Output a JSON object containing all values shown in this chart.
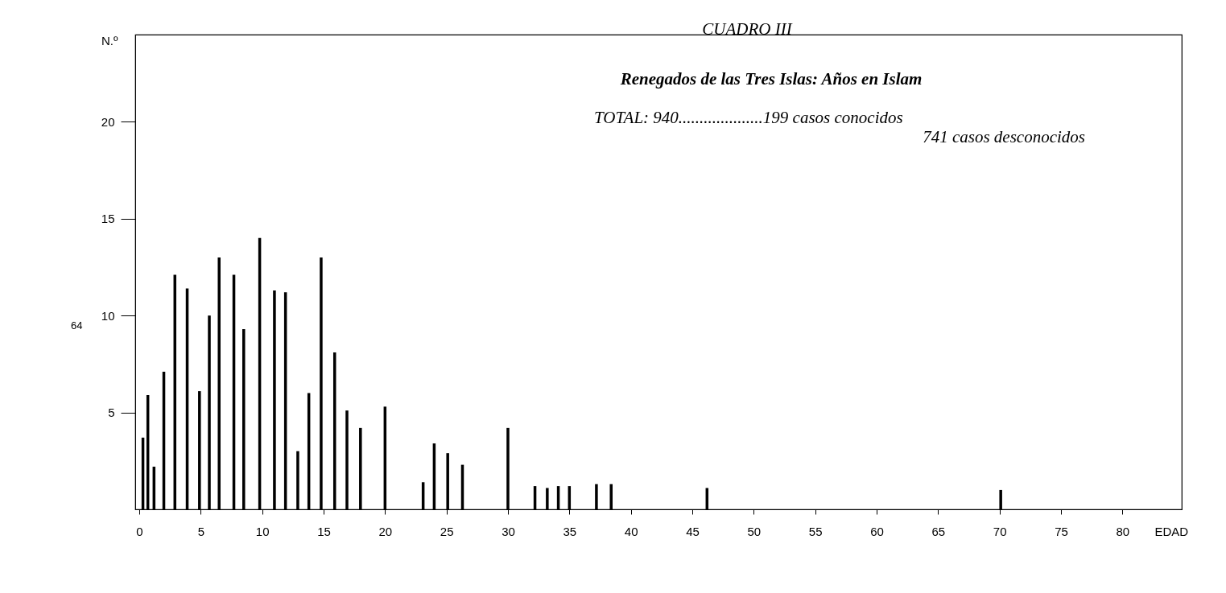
{
  "chart_data": {
    "type": "bar",
    "title": "CUADRO III",
    "subtitle": "Renegados de las Tres Islas: Años en Islam",
    "xlabel": "EDAD",
    "ylabel": "N.º",
    "x": [
      0.3,
      0.7,
      1.2,
      2,
      2.9,
      3.9,
      4.9,
      5.7,
      6.5,
      7.7,
      8.5,
      9.8,
      11,
      11.9,
      12.9,
      13.8,
      14.8,
      15.9,
      16.9,
      18,
      20,
      23.1,
      24,
      25.1,
      26.3,
      30,
      32.2,
      33.2,
      34.1,
      35,
      37.2,
      38.4,
      46.2,
      70.1
    ],
    "values": [
      3.7,
      5.9,
      2.2,
      7.1,
      12.1,
      11.4,
      6.1,
      10,
      13,
      12.1,
      9.3,
      14,
      11.3,
      11.2,
      3,
      6,
      13,
      8.1,
      5.1,
      4.2,
      5.3,
      1.4,
      3.4,
      2.9,
      2.3,
      4.2,
      1.2,
      1.1,
      1.2,
      1.2,
      1.3,
      1.3,
      1.1,
      1
    ],
    "color": "#000000",
    "xlim": [
      0,
      84.5
    ],
    "xticks": [
      0,
      5,
      10,
      15,
      20,
      25,
      30,
      35,
      40,
      45,
      50,
      55,
      60,
      65,
      70,
      75,
      80
    ],
    "ylim": [
      0,
      24.5
    ],
    "yticks": [
      5,
      10,
      15,
      20
    ],
    "annotations": [
      "TOTAL: 940....................199 casos conocidos",
      "741 casos desconocidos",
      "64"
    ]
  }
}
